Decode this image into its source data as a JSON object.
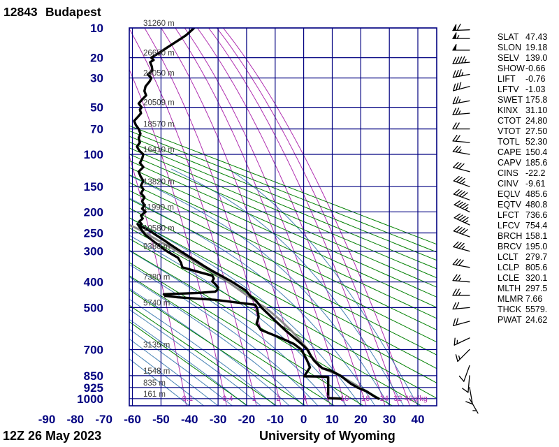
{
  "header": {
    "station_id": "12843",
    "station_name": "Budapest"
  },
  "footer": {
    "datetime": "12Z 26 May 2023",
    "source": "University of Wyoming"
  },
  "colors": {
    "axis_text": "#000080",
    "grid": "#000080",
    "dry_adiabat": "#008000",
    "moist_adiabat": "#4682B4",
    "mixing_ratio": "#B030B0",
    "sounding": "#000000",
    "parcel": "#8C8C8C",
    "height_text": "#404040",
    "title_text": "#000000"
  },
  "axes": {
    "pressure_unit": "hPa",
    "pressure_ticks": [
      {
        "p": 10,
        "label": "10",
        "height": "31260 m"
      },
      {
        "p": 20,
        "label": "20",
        "height": "26650 m"
      },
      {
        "p": 30,
        "label": "30",
        "height": "24050 m"
      },
      {
        "p": 50,
        "label": "50",
        "height": "20509 m"
      },
      {
        "p": 70,
        "label": "70",
        "height": "18570 m"
      },
      {
        "p": 100,
        "label": "100",
        "height": "16410 m"
      },
      {
        "p": 150,
        "label": "150",
        "height": "13820 m"
      },
      {
        "p": 200,
        "label": "200",
        "height": "11990 m"
      },
      {
        "p": 250,
        "label": "250",
        "height": "10580 m"
      },
      {
        "p": 300,
        "label": "300",
        "height": "9380 m"
      },
      {
        "p": 400,
        "label": "400",
        "height": "7380 m"
      },
      {
        "p": 500,
        "label": "500",
        "height": "5740 m"
      },
      {
        "p": 700,
        "label": "700",
        "height": "3135 m"
      },
      {
        "p": 850,
        "label": "850",
        "height": "1548 m"
      },
      {
        "p": 925,
        "label": "925",
        "height": "835 m"
      },
      {
        "p": 1000,
        "label": "1000",
        "height": "161 m"
      }
    ],
    "temp_ticks_c": [
      -90,
      -80,
      -70,
      -60,
      -50,
      -40,
      -30,
      -20,
      -10,
      0,
      10,
      20,
      30,
      40
    ],
    "mixing_ratio_unit": "g/kg"
  },
  "chart_data": {
    "type": "stuve-sounding",
    "title": "12843 Budapest",
    "pressure_range_hpa": [
      10,
      1050
    ],
    "temp_range_c": [
      -90,
      46
    ],
    "isotherm_step_c": 10,
    "dry_adiabats_theta_k": {
      "from": 250,
      "to": 460,
      "step": 10
    },
    "moist_adiabats_start_c": {
      "from": -40,
      "to": 40,
      "step": 5
    },
    "mixing_ratio_g_kg": [
      0.1,
      0.4,
      1,
      2,
      4,
      7,
      10,
      16,
      24,
      32,
      40
    ],
    "temperature_c": [
      [
        1000,
        26.3
      ],
      [
        990,
        25.2
      ],
      [
        950,
        22.0
      ],
      [
        925,
        18.8
      ],
      [
        900,
        16.5
      ],
      [
        850,
        12.9
      ],
      [
        820,
        9.5
      ],
      [
        806,
        6.6
      ],
      [
        790,
        5.4
      ],
      [
        760,
        3.6
      ],
      [
        736,
        2.6
      ],
      [
        700,
        1.3
      ],
      [
        670,
        -0.8
      ],
      [
        640,
        -3.2
      ],
      [
        600,
        -6.6
      ],
      [
        560,
        -9.8
      ],
      [
        530,
        -12.2
      ],
      [
        500,
        -14.8
      ],
      [
        470,
        -16.8
      ],
      [
        455,
        -18.5
      ],
      [
        445,
        -19.3
      ],
      [
        432,
        -20.2
      ],
      [
        415,
        -22.8
      ],
      [
        400,
        -25.0
      ],
      [
        380,
        -28.6
      ],
      [
        360,
        -32.4
      ],
      [
        347,
        -34.7
      ],
      [
        330,
        -37.6
      ],
      [
        315,
        -40.4
      ],
      [
        300,
        -43.2
      ],
      [
        285,
        -46.0
      ],
      [
        270,
        -48.8
      ],
      [
        255,
        -51.8
      ],
      [
        245,
        -53.8
      ],
      [
        237,
        -56.0
      ],
      [
        232,
        -57.6
      ],
      [
        228,
        -56.8
      ],
      [
        222,
        -57.6
      ],
      [
        215,
        -56.4
      ],
      [
        208,
        -57.0
      ],
      [
        200,
        -55.4
      ],
      [
        193,
        -56.6
      ],
      [
        186,
        -55.8
      ],
      [
        178,
        -56.6
      ],
      [
        170,
        -55.8
      ],
      [
        162,
        -57.0
      ],
      [
        155,
        -56.2
      ],
      [
        148,
        -57.0
      ],
      [
        140,
        -56.2
      ],
      [
        132,
        -57.2
      ],
      [
        125,
        -57.8
      ],
      [
        118,
        -56.2
      ],
      [
        112,
        -57.4
      ],
      [
        106,
        -56.6
      ],
      [
        100,
        -56.2
      ],
      [
        95,
        -57.6
      ],
      [
        90,
        -58.4
      ],
      [
        85,
        -57.4
      ],
      [
        80,
        -57.8
      ],
      [
        75,
        -57.2
      ],
      [
        70,
        -57.8
      ],
      [
        66,
        -58.8
      ],
      [
        62,
        -59.4
      ],
      [
        58,
        -58.0
      ],
      [
        55,
        -57.0
      ],
      [
        52,
        -57.4
      ],
      [
        50,
        -56.8
      ],
      [
        47,
        -57.8
      ],
      [
        44,
        -56.6
      ],
      [
        41,
        -55.2
      ],
      [
        38,
        -55.8
      ],
      [
        35,
        -55.4
      ],
      [
        32,
        -54.0
      ],
      [
        30,
        -53.4
      ],
      [
        28,
        -54.6
      ],
      [
        26,
        -53.0
      ],
      [
        24,
        -53.2
      ],
      [
        22,
        -53.8
      ],
      [
        21,
        -52.6
      ],
      [
        20,
        -53.4
      ],
      [
        18,
        -50.6
      ],
      [
        16,
        -47.8
      ],
      [
        14,
        -44.6
      ],
      [
        12,
        -41.2
      ],
      [
        11,
        -39.8
      ],
      [
        10,
        -38.4
      ]
    ],
    "dewpoint_c": [
      [
        1000,
        13.1
      ],
      [
        996,
        8.6
      ],
      [
        925,
        8.6
      ],
      [
        860,
        8.6
      ],
      [
        856,
        7.4
      ],
      [
        854,
        0.2
      ],
      [
        800,
        2.2
      ],
      [
        760,
        1.2
      ],
      [
        700,
        -0.8
      ],
      [
        670,
        -3.5
      ],
      [
        640,
        -8.0
      ],
      [
        600,
        -15.0
      ],
      [
        570,
        -16.5
      ],
      [
        540,
        -15.8
      ],
      [
        510,
        -16.2
      ],
      [
        500,
        -16.4
      ],
      [
        488,
        -17.0
      ],
      [
        478,
        -24.0
      ],
      [
        468,
        -31.0
      ],
      [
        458,
        -44.0
      ],
      [
        452,
        -48.5
      ],
      [
        446,
        -49.0
      ],
      [
        441,
        -37.0
      ],
      [
        436,
        -31.0
      ],
      [
        430,
        -30.3
      ],
      [
        420,
        -30.0
      ],
      [
        408,
        -31.0
      ],
      [
        398,
        -32.0
      ],
      [
        388,
        -31.5
      ],
      [
        378,
        -32.0
      ],
      [
        365,
        -37.0
      ],
      [
        350,
        -42.5
      ],
      [
        335,
        -43.0
      ],
      [
        320,
        -44.0
      ],
      [
        305,
        -47.0
      ],
      [
        300,
        -48.0
      ],
      [
        285,
        -50.5
      ],
      [
        270,
        -53.0
      ],
      [
        255,
        -55.5
      ],
      [
        245,
        -56.5
      ],
      [
        235,
        -57.5
      ],
      [
        228,
        -58.2
      ]
    ],
    "parcel_c": [
      [
        1000,
        26.3
      ],
      [
        950,
        21.9
      ],
      [
        900,
        17.4
      ],
      [
        850,
        12.7
      ],
      [
        806,
        6.6
      ],
      [
        760,
        4.0
      ],
      [
        736,
        2.6
      ],
      [
        700,
        1.5
      ],
      [
        650,
        -1.2
      ],
      [
        600,
        -4.6
      ],
      [
        550,
        -8.6
      ],
      [
        500,
        -13.4
      ],
      [
        485,
        -15.6
      ],
      [
        450,
        -19.9
      ],
      [
        400,
        -26.5
      ],
      [
        350,
        -34.8
      ],
      [
        300,
        -44.4
      ],
      [
        270,
        -51.0
      ],
      [
        250,
        -55.5
      ],
      [
        240,
        -58.0
      ],
      [
        232,
        -60.5
      ],
      [
        226,
        -62.5
      ]
    ],
    "winds": [
      {
        "p": 1000,
        "dir": 150,
        "spd": 5
      },
      {
        "p": 925,
        "dir": 170,
        "spd": 10
      },
      {
        "p": 850,
        "dir": 185,
        "spd": 10
      },
      {
        "p": 790,
        "dir": 200,
        "spd": 10
      },
      {
        "p": 700,
        "dir": 225,
        "spd": 15
      },
      {
        "p": 640,
        "dir": 245,
        "spd": 15
      },
      {
        "p": 560,
        "dir": 255,
        "spd": 20
      },
      {
        "p": 500,
        "dir": 265,
        "spd": 20
      },
      {
        "p": 450,
        "dir": 270,
        "spd": 25
      },
      {
        "p": 400,
        "dir": 275,
        "spd": 25
      },
      {
        "p": 350,
        "dir": 280,
        "spd": 30
      },
      {
        "p": 300,
        "dir": 285,
        "spd": 35
      },
      {
        "p": 260,
        "dir": 290,
        "spd": 40
      },
      {
        "p": 230,
        "dir": 295,
        "spd": 45
      },
      {
        "p": 200,
        "dir": 295,
        "spd": 45
      },
      {
        "p": 175,
        "dir": 290,
        "spd": 40
      },
      {
        "p": 150,
        "dir": 290,
        "spd": 35
      },
      {
        "p": 125,
        "dir": 285,
        "spd": 30
      },
      {
        "p": 100,
        "dir": 280,
        "spd": 25
      },
      {
        "p": 85,
        "dir": 275,
        "spd": 20
      },
      {
        "p": 70,
        "dir": 270,
        "spd": 20
      },
      {
        "p": 55,
        "dir": 265,
        "spd": 25
      },
      {
        "p": 45,
        "dir": 260,
        "spd": 25
      },
      {
        "p": 35,
        "dir": 255,
        "spd": 30
      },
      {
        "p": 28,
        "dir": 260,
        "spd": 35
      },
      {
        "p": 22,
        "dir": 265,
        "spd": 45
      },
      {
        "p": 17,
        "dir": 270,
        "spd": 50
      },
      {
        "p": 13,
        "dir": 270,
        "spd": 55
      },
      {
        "p": 10.5,
        "dir": 268,
        "spd": 60
      }
    ]
  },
  "stats": [
    {
      "label": "SLAT",
      "value": "47.43"
    },
    {
      "label": "SLON",
      "value": "19.18"
    },
    {
      "label": "SELV",
      "value": "139.0"
    },
    {
      "label": "SHOW",
      "value": "-0.66"
    },
    {
      "label": "LIFT",
      "value": "-0.76"
    },
    {
      "label": "LFTV",
      "value": "-1.03"
    },
    {
      "label": "SWET",
      "value": "175.8"
    },
    {
      "label": "KINX",
      "value": "31.10"
    },
    {
      "label": "CTOT",
      "value": "24.80"
    },
    {
      "label": "VTOT",
      "value": "27.50"
    },
    {
      "label": "TOTL",
      "value": "52.30"
    },
    {
      "label": "CAPE",
      "value": "150.4"
    },
    {
      "label": "CAPV",
      "value": "185.6"
    },
    {
      "label": "CINS",
      "value": "-22.2"
    },
    {
      "label": "CINV",
      "value": "-9.61"
    },
    {
      "label": "EQLV",
      "value": "485.6"
    },
    {
      "label": "EQTV",
      "value": "480.8"
    },
    {
      "label": "LFCT",
      "value": "736.6"
    },
    {
      "label": "LFCV",
      "value": "754.4"
    },
    {
      "label": "BRCH",
      "value": "158.1"
    },
    {
      "label": "BRCV",
      "value": "195.0"
    },
    {
      "label": "LCLT",
      "value": "279.7"
    },
    {
      "label": "LCLP",
      "value": "805.6"
    },
    {
      "label": "LCLE",
      "value": "320.1"
    },
    {
      "label": "MLTH",
      "value": "297.5"
    },
    {
      "label": "MLMR",
      "value": "7.66"
    },
    {
      "label": "THCK",
      "value": "5579."
    },
    {
      "label": "PWAT",
      "value": "24.62"
    }
  ]
}
